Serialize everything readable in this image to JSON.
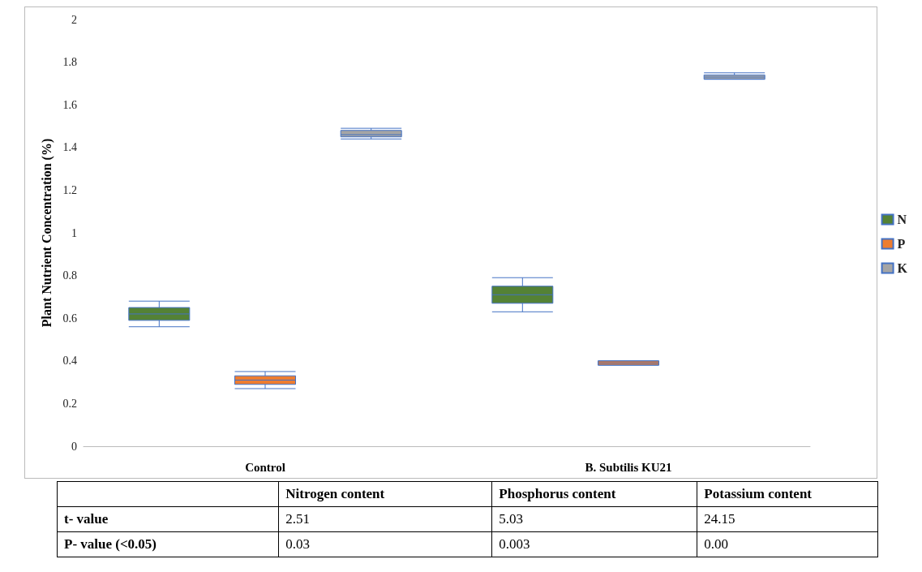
{
  "chart_data": {
    "type": "box",
    "ylabel": "Plant Nutrient Concentration (%)",
    "categories": [
      "Control",
      "B. Subtilis KU21"
    ],
    "series": [
      {
        "name": "N",
        "color": "#548235",
        "boxes": [
          {
            "low": 0.56,
            "q1": 0.59,
            "median": 0.62,
            "q3": 0.65,
            "high": 0.68
          },
          {
            "low": 0.63,
            "q1": 0.67,
            "median": 0.71,
            "q3": 0.75,
            "high": 0.79
          }
        ]
      },
      {
        "name": "P",
        "color": "#ed7d31",
        "boxes": [
          {
            "low": 0.27,
            "q1": 0.29,
            "median": 0.31,
            "q3": 0.33,
            "high": 0.35
          },
          {
            "low": 0.38,
            "q1": 0.38,
            "median": 0.39,
            "q3": 0.4,
            "high": 0.4
          }
        ]
      },
      {
        "name": "K",
        "color": "#a5a5a5",
        "boxes": [
          {
            "low": 1.44,
            "q1": 1.45,
            "median": 1.46,
            "q3": 1.48,
            "high": 1.49
          },
          {
            "low": 1.72,
            "q1": 1.72,
            "median": 1.73,
            "q3": 1.74,
            "high": 1.75
          }
        ]
      }
    ],
    "ylim": [
      0,
      2
    ],
    "yticks": [
      0,
      0.2,
      0.4,
      0.6,
      0.8,
      1,
      1.2,
      1.4,
      1.6,
      1.8,
      2
    ],
    "grid": false,
    "legend": "right",
    "annotations": [
      "Nitrogen content",
      "Phosphorus content",
      "Potassium content",
      "t- value",
      "2.51",
      "5.03",
      "24.15",
      "P- value (<0.05)",
      "0.03",
      "0.003",
      "0.00"
    ]
  }
}
